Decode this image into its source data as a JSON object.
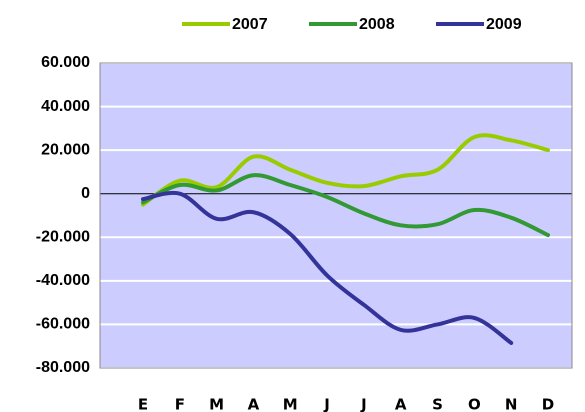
{
  "chart_data": {
    "type": "line",
    "categories": [
      "E",
      "F",
      "M",
      "A",
      "M",
      "J",
      "J",
      "A",
      "S",
      "O",
      "N",
      "D"
    ],
    "series": [
      {
        "name": "2007",
        "color": "#99cc00",
        "values": [
          -5000,
          6000,
          3000,
          17000,
          11000,
          5000,
          3500,
          8000,
          11000,
          26000,
          24500,
          20000
        ]
      },
      {
        "name": "2008",
        "color": "#339933",
        "values": [
          -4000,
          4000,
          1500,
          8500,
          4000,
          -1500,
          -9000,
          -14500,
          -14000,
          -7500,
          -11000,
          -19000
        ]
      },
      {
        "name": "2009",
        "color": "#333399",
        "values": [
          -2500,
          0,
          -11500,
          -8500,
          -18500,
          -37500,
          -51000,
          -62500,
          -60000,
          -57000,
          -68500,
          null
        ]
      }
    ],
    "ylim": [
      -80000,
      60000
    ],
    "yticks": [
      {
        "value": 60000,
        "label": "60.000"
      },
      {
        "value": 40000,
        "label": "40.000"
      },
      {
        "value": 20000,
        "label": "20.000"
      },
      0,
      {
        "value": -20000,
        "label": "-20.000"
      },
      {
        "value": -40000,
        "label": "-40.000"
      },
      {
        "value": -60000,
        "label": "-60.000"
      },
      {
        "value": -80000,
        "label": "-80.000"
      }
    ],
    "grid": true,
    "plot_background": "#ccccff",
    "legend": "top"
  }
}
